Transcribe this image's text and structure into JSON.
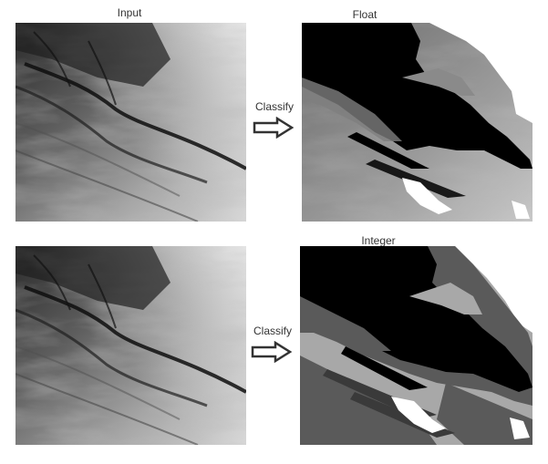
{
  "labels": {
    "input": "Input",
    "float": "Float",
    "integer": "Integer",
    "classify_top": "Classify",
    "classify_bottom": "Classify"
  },
  "colors": {
    "background": "#ffffff",
    "class_black": "#000000",
    "class_dark_gray": "#5a5a5a",
    "class_light_gray": "#a8a8a8",
    "class_white": "#ffffff",
    "arrow_stroke": "#333333"
  },
  "icons": {
    "arrow": "right-arrow-icon"
  }
}
